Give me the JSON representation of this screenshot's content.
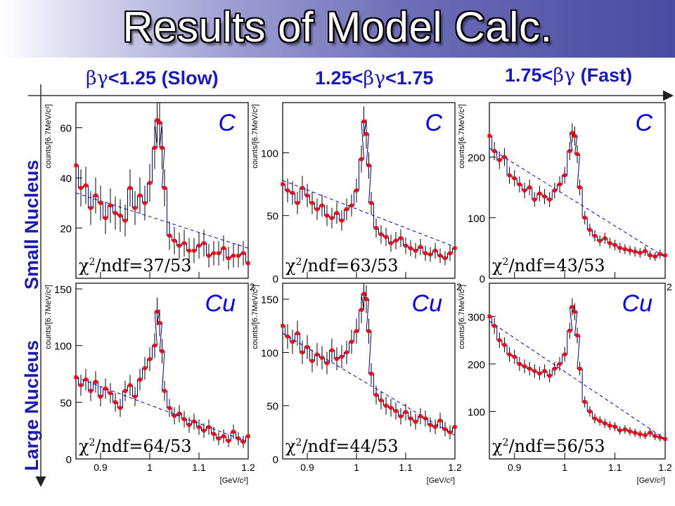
{
  "title": "Results of Model Calc.",
  "column_headers": [
    {
      "greek": "βγ",
      "text": "<1.25 (Slow)"
    },
    {
      "pre": "1.25<",
      "greek": "βγ",
      "text": "<1.75"
    },
    {
      "pre": "1.75<",
      "greek": "βγ",
      "text": " (Fast)"
    }
  ],
  "row_labels": {
    "small": "Small Nucleus",
    "large": "Large Nucleus"
  },
  "colors": {
    "data": "#ff0000",
    "hist": "#000080",
    "background_fit": "#0000cc",
    "label": "#1a1ab4"
  },
  "chart_data": [
    {
      "type": "scatter",
      "target": "C",
      "chi2_ndf": "37/53",
      "ylabel": "counts/[6.7MeV/c²]",
      "yticks": [
        20,
        40,
        60
      ],
      "ylim": [
        0,
        70
      ],
      "xticks": [
        "0.9",
        "1",
        "1.1",
        "1.2"
      ],
      "xlim": [
        0.85,
        1.2
      ],
      "bg": [
        34,
        12
      ],
      "x": [
        0.85,
        0.86,
        0.87,
        0.88,
        0.89,
        0.9,
        0.91,
        0.92,
        0.93,
        0.94,
        0.95,
        0.96,
        0.97,
        0.98,
        0.99,
        1.0,
        1.01,
        1.015,
        1.02,
        1.025,
        1.03,
        1.04,
        1.05,
        1.06,
        1.07,
        1.08,
        1.09,
        1.1,
        1.11,
        1.12,
        1.13,
        1.14,
        1.15,
        1.16,
        1.17,
        1.18,
        1.19,
        1.2
      ],
      "y": [
        45,
        36,
        37,
        28,
        33,
        30,
        24,
        29,
        26,
        25,
        23,
        36,
        28,
        33,
        30,
        38,
        52,
        63,
        62,
        52,
        36,
        17,
        15,
        13,
        14,
        11,
        11,
        13,
        14,
        9,
        10,
        10,
        12,
        8,
        9,
        9,
        10,
        6
      ]
    },
    {
      "type": "scatter",
      "target": "C",
      "chi2_ndf": "63/53",
      "ylabel": "counts/[6.7MeV/c²]",
      "yticks": [
        0,
        50,
        100
      ],
      "ylim": [
        0,
        140
      ],
      "xticks": [
        "0.9",
        "1",
        "1.1",
        "1.2"
      ],
      "xlim": [
        0.85,
        1.2
      ],
      "bg": [
        78,
        25
      ],
      "x": [
        0.85,
        0.86,
        0.87,
        0.88,
        0.89,
        0.9,
        0.91,
        0.92,
        0.93,
        0.94,
        0.95,
        0.96,
        0.97,
        0.98,
        0.99,
        1.0,
        1.01,
        1.015,
        1.02,
        1.025,
        1.03,
        1.04,
        1.05,
        1.06,
        1.07,
        1.08,
        1.09,
        1.1,
        1.11,
        1.12,
        1.13,
        1.14,
        1.15,
        1.16,
        1.17,
        1.18,
        1.19,
        1.2
      ],
      "y": [
        75,
        70,
        68,
        60,
        72,
        66,
        60,
        55,
        58,
        50,
        48,
        52,
        46,
        55,
        58,
        70,
        95,
        125,
        115,
        90,
        60,
        40,
        35,
        33,
        28,
        30,
        32,
        26,
        24,
        22,
        25,
        20,
        19,
        22,
        18,
        16,
        20,
        24
      ]
    },
    {
      "type": "scatter",
      "target": "C",
      "chi2_ndf": "43/53",
      "ylabel": "counts/[6.7MeV/c²]",
      "yticks": [
        0,
        100,
        200
      ],
      "ylim": [
        0,
        290
      ],
      "xticks": [
        "0.9",
        "1",
        "1.1",
        "1.2"
      ],
      "xlim": [
        0.85,
        1.2
      ],
      "bg": [
        215,
        35
      ],
      "x": [
        0.85,
        0.86,
        0.87,
        0.88,
        0.89,
        0.9,
        0.91,
        0.92,
        0.93,
        0.94,
        0.95,
        0.96,
        0.97,
        0.98,
        0.99,
        1.0,
        1.01,
        1.015,
        1.02,
        1.025,
        1.03,
        1.04,
        1.05,
        1.06,
        1.07,
        1.08,
        1.09,
        1.1,
        1.11,
        1.12,
        1.13,
        1.14,
        1.15,
        1.16,
        1.17,
        1.18,
        1.19,
        1.2
      ],
      "y": [
        235,
        210,
        195,
        200,
        170,
        165,
        155,
        145,
        150,
        130,
        140,
        135,
        130,
        145,
        155,
        170,
        210,
        240,
        235,
        205,
        150,
        100,
        80,
        70,
        62,
        66,
        58,
        55,
        50,
        48,
        46,
        44,
        42,
        45,
        38,
        36,
        40,
        38
      ]
    },
    {
      "type": "scatter",
      "target": "Cu",
      "chi2_ndf": "64/53",
      "ylabel": "counts/[6.7MeV/c²]",
      "yticks": [
        0,
        50,
        100,
        150
      ],
      "ylim": [
        0,
        155
      ],
      "xticks": [
        "0.9",
        "1",
        "1.1",
        "1.2"
      ],
      "xlim": [
        0.85,
        1.2
      ],
      "bg": [
        72,
        15
      ],
      "x": [
        0.85,
        0.86,
        0.87,
        0.88,
        0.89,
        0.9,
        0.91,
        0.92,
        0.93,
        0.94,
        0.95,
        0.96,
        0.97,
        0.98,
        0.99,
        1.0,
        1.01,
        1.015,
        1.02,
        1.025,
        1.03,
        1.04,
        1.05,
        1.06,
        1.07,
        1.08,
        1.09,
        1.1,
        1.11,
        1.12,
        1.13,
        1.14,
        1.15,
        1.16,
        1.17,
        1.18,
        1.19,
        1.2
      ],
      "y": [
        72,
        65,
        70,
        60,
        68,
        55,
        62,
        58,
        50,
        45,
        60,
        65,
        55,
        70,
        80,
        88,
        100,
        130,
        120,
        95,
        60,
        45,
        38,
        40,
        35,
        30,
        33,
        28,
        25,
        28,
        22,
        18,
        20,
        16,
        24,
        18,
        15,
        20
      ]
    },
    {
      "type": "scatter",
      "target": "Cu",
      "chi2_ndf": "44/53",
      "ylabel": "counts/[6.7MeV/c²]",
      "yticks": [
        0,
        50,
        100,
        150
      ],
      "ylim": [
        0,
        165
      ],
      "xticks": [
        "0.9",
        "1",
        "1.1",
        "1.2"
      ],
      "xlim": [
        0.85,
        1.2
      ],
      "bg": [
        118,
        22
      ],
      "x": [
        0.85,
        0.86,
        0.87,
        0.88,
        0.89,
        0.9,
        0.91,
        0.92,
        0.93,
        0.94,
        0.95,
        0.96,
        0.97,
        0.98,
        0.99,
        1.0,
        1.01,
        1.015,
        1.02,
        1.025,
        1.03,
        1.04,
        1.05,
        1.06,
        1.07,
        1.08,
        1.09,
        1.1,
        1.11,
        1.12,
        1.13,
        1.14,
        1.15,
        1.16,
        1.17,
        1.18,
        1.19,
        1.2
      ],
      "y": [
        125,
        115,
        110,
        118,
        100,
        105,
        92,
        98,
        95,
        90,
        102,
        94,
        96,
        100,
        110,
        120,
        140,
        155,
        150,
        120,
        80,
        60,
        55,
        50,
        48,
        45,
        40,
        44,
        38,
        35,
        40,
        38,
        32,
        30,
        36,
        28,
        25,
        30
      ]
    },
    {
      "type": "scatter",
      "target": "Cu",
      "chi2_ndf": "56/53",
      "ylabel": "counts/[6.7MeV/c²]",
      "yticks": [
        100,
        200,
        300
      ],
      "ylim": [
        0,
        370
      ],
      "xticks": [
        "0.9",
        "1",
        "1.1",
        "1.2"
      ],
      "xlim": [
        0.85,
        1.2
      ],
      "bg": [
        290,
        42
      ],
      "x": [
        0.85,
        0.86,
        0.87,
        0.88,
        0.89,
        0.9,
        0.91,
        0.92,
        0.93,
        0.94,
        0.95,
        0.96,
        0.97,
        0.98,
        0.99,
        1.0,
        1.01,
        1.015,
        1.02,
        1.025,
        1.03,
        1.04,
        1.05,
        1.06,
        1.07,
        1.08,
        1.09,
        1.1,
        1.11,
        1.12,
        1.13,
        1.14,
        1.15,
        1.16,
        1.17,
        1.18,
        1.19,
        1.2
      ],
      "y": [
        300,
        280,
        250,
        240,
        220,
        215,
        200,
        195,
        190,
        185,
        180,
        185,
        175,
        190,
        200,
        220,
        270,
        320,
        310,
        260,
        190,
        120,
        100,
        85,
        80,
        75,
        70,
        68,
        60,
        62,
        58,
        55,
        52,
        50,
        55,
        48,
        45,
        42
      ]
    }
  ]
}
